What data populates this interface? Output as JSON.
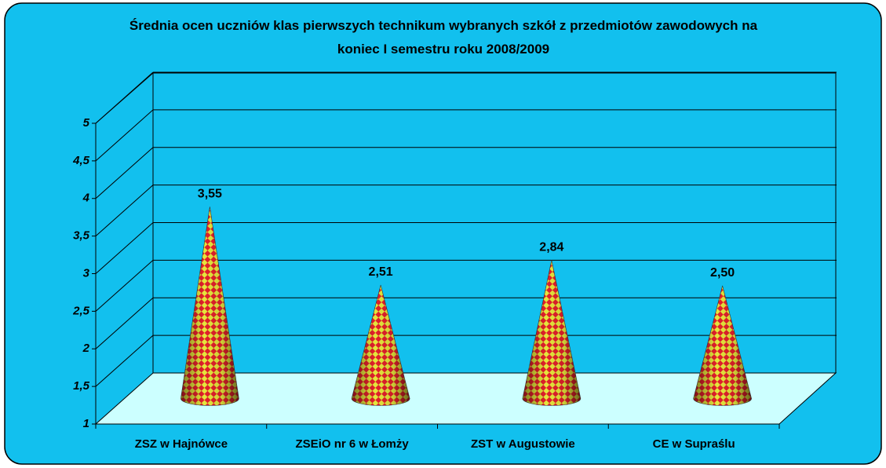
{
  "chart_data": {
    "type": "cone",
    "title": "Średnia ocen uczniów klas pierwszych technikum wybranych szkół z przedmiotów zawodowych na koniec I semestru roku 2008/2009",
    "categories": [
      "ZSZ w Hajnówce",
      "ZSEiO nr 6 w Łomży",
      "ZST w Augustowie",
      "CE w Supraślu"
    ],
    "values": [
      3.55,
      2.51,
      2.84,
      2.5
    ],
    "value_labels": [
      "3,55",
      "2,51",
      "2,84",
      "2,50"
    ],
    "ylim": [
      1,
      5
    ],
    "yticks": [
      1,
      {
        "value": 1.5,
        "label": "1,5"
      },
      2,
      {
        "value": 2.5,
        "label": "2,5"
      },
      3,
      {
        "value": 3.5,
        "label": "3,5"
      },
      4,
      {
        "value": 4.5,
        "label": "4,5"
      },
      5
    ],
    "grid": true,
    "colors": [
      "#e3202b",
      "#e6e63c"
    ]
  }
}
